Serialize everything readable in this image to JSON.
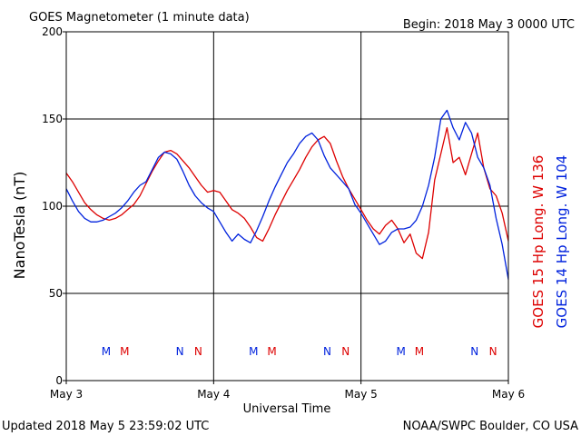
{
  "header": {
    "title": "GOES Magnetometer (1 minute data)",
    "begin": "Begin:  2018 May 3 0000 UTC"
  },
  "footer": {
    "updated": "Updated 2018 May  5 23:59:02 UTC",
    "source": "NOAA/SWPC Boulder, CO USA"
  },
  "chart_data": {
    "type": "line",
    "xlabel": "Universal Time",
    "ylabel": "NanoTesla (nT)",
    "ylim": [
      0,
      200
    ],
    "xlim_hours": [
      0,
      72
    ],
    "y_ticks": [
      0,
      50,
      100,
      150,
      200
    ],
    "x_ticks": [
      {
        "hour": 0,
        "label": "May 3"
      },
      {
        "hour": 24,
        "label": "May 4"
      },
      {
        "hour": 48,
        "label": "May 5"
      },
      {
        "hour": 72,
        "label": "May 6"
      }
    ],
    "grid": true,
    "colors": {
      "goes15": "#dd0000",
      "goes14": "#0022dd"
    },
    "series": [
      {
        "name": "GOES 15 Hp  Long. W 136",
        "color": "#dd0000",
        "x": [
          0,
          1,
          2,
          3,
          4,
          5,
          6,
          7,
          8,
          9,
          10,
          11,
          12,
          13,
          14,
          15,
          16,
          17,
          18,
          19,
          20,
          21,
          22,
          23,
          24,
          25,
          26,
          27,
          28,
          29,
          30,
          31,
          32,
          33,
          34,
          35,
          36,
          37,
          38,
          39,
          40,
          41,
          42,
          43,
          44,
          45,
          46,
          47,
          48,
          49,
          50,
          51,
          52,
          53,
          54,
          55,
          56,
          57,
          58,
          59,
          60,
          61,
          62,
          63,
          64,
          65,
          66,
          67,
          68,
          69,
          70,
          71,
          72
        ],
        "y": [
          119,
          114,
          108,
          102,
          98,
          95,
          93,
          92,
          93,
          95,
          98,
          101,
          106,
          113,
          120,
          126,
          131,
          132,
          130,
          126,
          122,
          117,
          112,
          108,
          109,
          108,
          103,
          98,
          96,
          93,
          88,
          82,
          80,
          87,
          95,
          102,
          109,
          115,
          121,
          128,
          134,
          138,
          140,
          136,
          126,
          117,
          110,
          104,
          98,
          92,
          87,
          84,
          89,
          92,
          87,
          79,
          84,
          73,
          70,
          85,
          115,
          130,
          145,
          125,
          128,
          118,
          130,
          142,
          122,
          110,
          106,
          96,
          80
        ]
      },
      {
        "name": "GOES 14 Hp  Long. W 104",
        "color": "#0022dd",
        "x": [
          0,
          1,
          2,
          3,
          4,
          5,
          6,
          7,
          8,
          9,
          10,
          11,
          12,
          13,
          14,
          15,
          16,
          17,
          18,
          19,
          20,
          21,
          22,
          23,
          24,
          25,
          26,
          27,
          28,
          29,
          30,
          31,
          32,
          33,
          34,
          35,
          36,
          37,
          38,
          39,
          40,
          41,
          42,
          43,
          44,
          45,
          46,
          47,
          48,
          49,
          50,
          51,
          52,
          53,
          54,
          55,
          56,
          57,
          58,
          59,
          60,
          61,
          62,
          63,
          64,
          65,
          66,
          67,
          68,
          69,
          70,
          71,
          72
        ],
        "y": [
          110,
          103,
          97,
          93,
          91,
          91,
          92,
          94,
          96,
          99,
          103,
          108,
          112,
          114,
          121,
          128,
          131,
          130,
          127,
          120,
          112,
          106,
          102,
          99,
          97,
          91,
          85,
          80,
          84,
          81,
          79,
          86,
          94,
          103,
          111,
          118,
          125,
          130,
          136,
          140,
          142,
          138,
          129,
          122,
          118,
          114,
          110,
          101,
          96,
          90,
          84,
          78,
          80,
          85,
          87,
          87,
          88,
          92,
          100,
          112,
          128,
          150,
          155,
          145,
          138,
          148,
          142,
          128,
          122,
          112,
          93,
          78,
          58
        ]
      }
    ],
    "markers": [
      {
        "letter": "M",
        "hour": 6.5,
        "color": "#0022dd"
      },
      {
        "letter": "M",
        "hour": 9.5,
        "color": "#dd0000"
      },
      {
        "letter": "N",
        "hour": 18.5,
        "color": "#0022dd"
      },
      {
        "letter": "N",
        "hour": 21.5,
        "color": "#dd0000"
      },
      {
        "letter": "M",
        "hour": 30.5,
        "color": "#0022dd"
      },
      {
        "letter": "M",
        "hour": 33.5,
        "color": "#dd0000"
      },
      {
        "letter": "N",
        "hour": 42.5,
        "color": "#0022dd"
      },
      {
        "letter": "N",
        "hour": 45.5,
        "color": "#dd0000"
      },
      {
        "letter": "M",
        "hour": 54.5,
        "color": "#0022dd"
      },
      {
        "letter": "M",
        "hour": 57.5,
        "color": "#dd0000"
      },
      {
        "letter": "N",
        "hour": 66.5,
        "color": "#0022dd"
      },
      {
        "letter": "N",
        "hour": 69.5,
        "color": "#dd0000"
      }
    ]
  }
}
